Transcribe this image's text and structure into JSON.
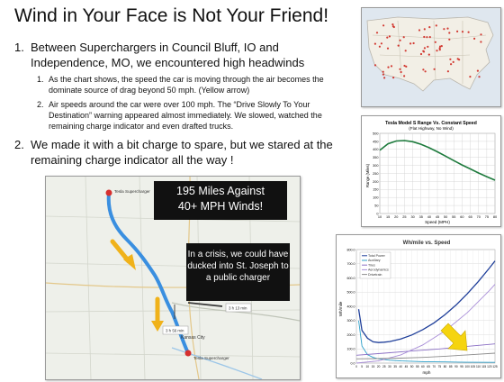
{
  "title": "Wind in Your Face is Not Your Friend!",
  "points": [
    {
      "num": "1.",
      "text": "Between Superchargers in Council Bluff, IO and Independence, MO, we encountered high headwinds"
    },
    {
      "num": "2.",
      "text": "We made it with a bit charge to spare, but we stared at the remaining charge indicator all the way !"
    }
  ],
  "subpoints": [
    {
      "num": "1.",
      "text": "As the chart shows, the speed the car is moving through the air becomes the dominate source of drag beyond 50 mph. (Yellow arrow)"
    },
    {
      "num": "2.",
      "text": "Air speeds around the car were over 100 mph. The “Drive Slowly To Your Destination” warning appeared almost immediately. We slowed, watched the remaining charge indicator and even drafted trucks."
    }
  ],
  "callouts": {
    "miles_line1": "195 Miles Against",
    "miles_line2": "40+ MPH Winds!",
    "crisis": "In a crisis, we could have ducked into St. Joseph to a public charger"
  },
  "route_map": {
    "start_label": "Tesla Supercharger",
    "end_label": "Tesla Supercharger",
    "city_label": "Kansas City",
    "time_badge_1": "3 h 56 min",
    "time_badge_2": "3 h 13 min"
  },
  "colors": {
    "route": "#3a8fe0",
    "arrow": "#f0b21a",
    "map_bg": "#eef0ea"
  },
  "chart_data": [
    {
      "type": "line",
      "title": "Tesla Model S Range Vs. Constant Speed",
      "subtitle": "(Flat Highway, No Wind)",
      "xlabel": "Speed (MPH)",
      "ylabel": "Range (Miles)",
      "xlim": [
        10,
        80
      ],
      "ylim": [
        0,
        500
      ],
      "xticks": [
        10,
        15,
        20,
        25,
        30,
        35,
        40,
        45,
        50,
        55,
        60,
        65,
        70,
        75,
        80
      ],
      "yticks": [
        0,
        50,
        100,
        150,
        200,
        250,
        300,
        350,
        400,
        450,
        500
      ],
      "grid": true,
      "series": [
        {
          "x": [
            10,
            15,
            20,
            25,
            30,
            35,
            40,
            45,
            50,
            55,
            60,
            65,
            70,
            75,
            80
          ],
          "y": [
            395,
            435,
            452,
            455,
            448,
            432,
            410,
            385,
            358,
            330,
            303,
            278,
            253,
            230,
            208
          ]
        }
      ]
    },
    {
      "type": "line",
      "title": "Wh/mile vs. Speed",
      "xlabel": "mph",
      "ylabel": "Wh/mile",
      "xlim": [
        0,
        125
      ],
      "ylim": [
        0,
        800
      ],
      "xticks": [
        0,
        5,
        10,
        15,
        20,
        25,
        30,
        35,
        40,
        45,
        50,
        55,
        60,
        65,
        70,
        75,
        80,
        85,
        90,
        95,
        100,
        105,
        110,
        115,
        120,
        125
      ],
      "yticks": [
        0,
        100,
        200,
        300,
        400,
        500,
        600,
        700,
        800
      ],
      "yticklabels": [
        "0.0",
        "100.0",
        "200.0",
        "300.0",
        "400.0",
        "500.0",
        "600.0",
        "700.0",
        "800.0"
      ],
      "grid": true,
      "legend": "top-left",
      "series": [
        {
          "name": "Total Power",
          "x": [
            2,
            5,
            10,
            15,
            20,
            25,
            30,
            40,
            50,
            60,
            70,
            80,
            90,
            100,
            110,
            120,
            125
          ],
          "y": [
            380,
            230,
            175,
            150,
            145,
            147,
            152,
            170,
            198,
            236,
            283,
            342,
            410,
            488,
            575,
            670,
            720
          ]
        },
        {
          "name": "Auxiliary",
          "x": [
            2,
            5,
            10,
            15,
            20,
            30,
            40,
            60,
            80,
            100,
            125
          ],
          "y": [
            300,
            120,
            60,
            40,
            30,
            20,
            15,
            10,
            8,
            6,
            5
          ]
        },
        {
          "name": "Tires",
          "x": [
            0,
            25,
            50,
            75,
            100,
            125
          ],
          "y": [
            55,
            70,
            85,
            100,
            118,
            135
          ]
        },
        {
          "name": "Aerodynamics",
          "x": [
            0,
            20,
            40,
            60,
            80,
            100,
            120,
            125
          ],
          "y": [
            0,
            15,
            58,
            128,
            228,
            355,
            512,
            555
          ]
        },
        {
          "name": "Drivetrain",
          "x": [
            0,
            20,
            40,
            60,
            80,
            100,
            125
          ],
          "y": [
            30,
            32,
            35,
            40,
            48,
            58,
            70
          ]
        }
      ]
    }
  ]
}
